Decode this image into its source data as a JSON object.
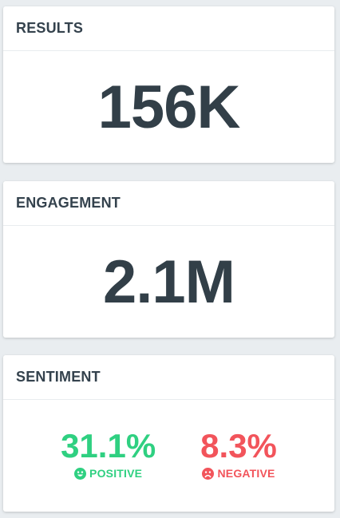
{
  "colors": {
    "background": "#e9edf0",
    "panel": "#ffffff",
    "text_dark": "#323f48",
    "positive": "#2fd081",
    "negative": "#f2545b"
  },
  "results": {
    "title": "RESULTS",
    "value": "156K"
  },
  "engagement": {
    "title": "ENGAGEMENT",
    "value": "2.1M"
  },
  "sentiment": {
    "title": "SENTIMENT",
    "positive": {
      "value": "31.1%",
      "label": "POSITIVE",
      "icon": "smile-icon"
    },
    "negative": {
      "value": "8.3%",
      "label": "NEGATIVE",
      "icon": "frown-icon"
    }
  }
}
